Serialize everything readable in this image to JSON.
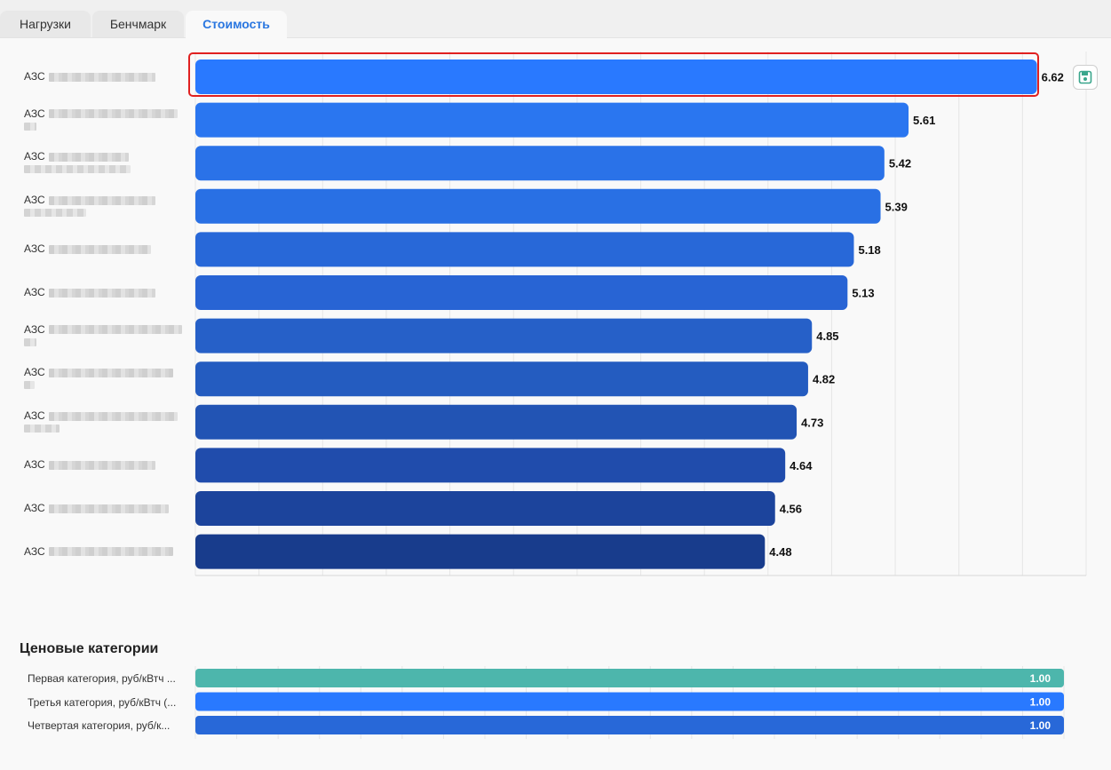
{
  "tabs": [
    {
      "label": "Нагрузки",
      "active": false
    },
    {
      "label": "Бенчмарк",
      "active": false
    },
    {
      "label": "Стоимость",
      "active": true
    }
  ],
  "chart_data": [
    {
      "type": "bar",
      "orientation": "horizontal",
      "categories": [
        "АЗС",
        "АЗС",
        "АЗС",
        "АЗС",
        "АЗС",
        "АЗС",
        "АЗС",
        "АЗС",
        "АЗС",
        "АЗС",
        "АЗС",
        "АЗС"
      ],
      "values": [
        6.62,
        5.61,
        5.42,
        5.39,
        5.18,
        5.13,
        4.85,
        4.82,
        4.73,
        4.64,
        4.56,
        4.48
      ],
      "xlim": [
        0,
        7
      ],
      "grid": true,
      "highlighted_index": 0,
      "colors": [
        "#2979ff",
        "#2a76f0",
        "#2a72e8",
        "#2970e4",
        "#2868d8",
        "#2864d4",
        "#2660c8",
        "#245cc0",
        "#2254b4",
        "#204cac",
        "#1c449c",
        "#183c8c"
      ]
    },
    {
      "type": "bar",
      "orientation": "horizontal",
      "title": "Ценовые категории",
      "categories": [
        "Первая категория, руб/кВтч ...",
        "Третья категория, руб/кВтч (...",
        "Четвертая категория, руб/к..."
      ],
      "values": [
        1.0,
        1.0,
        1.0
      ],
      "value_labels": [
        "1.00",
        "1.00",
        "1.00"
      ],
      "grid": true,
      "colors": [
        "#4db6ac",
        "#2979ff",
        "#2868d8"
      ]
    }
  ],
  "save_icon": "save-icon",
  "accent": "#2a77e0"
}
